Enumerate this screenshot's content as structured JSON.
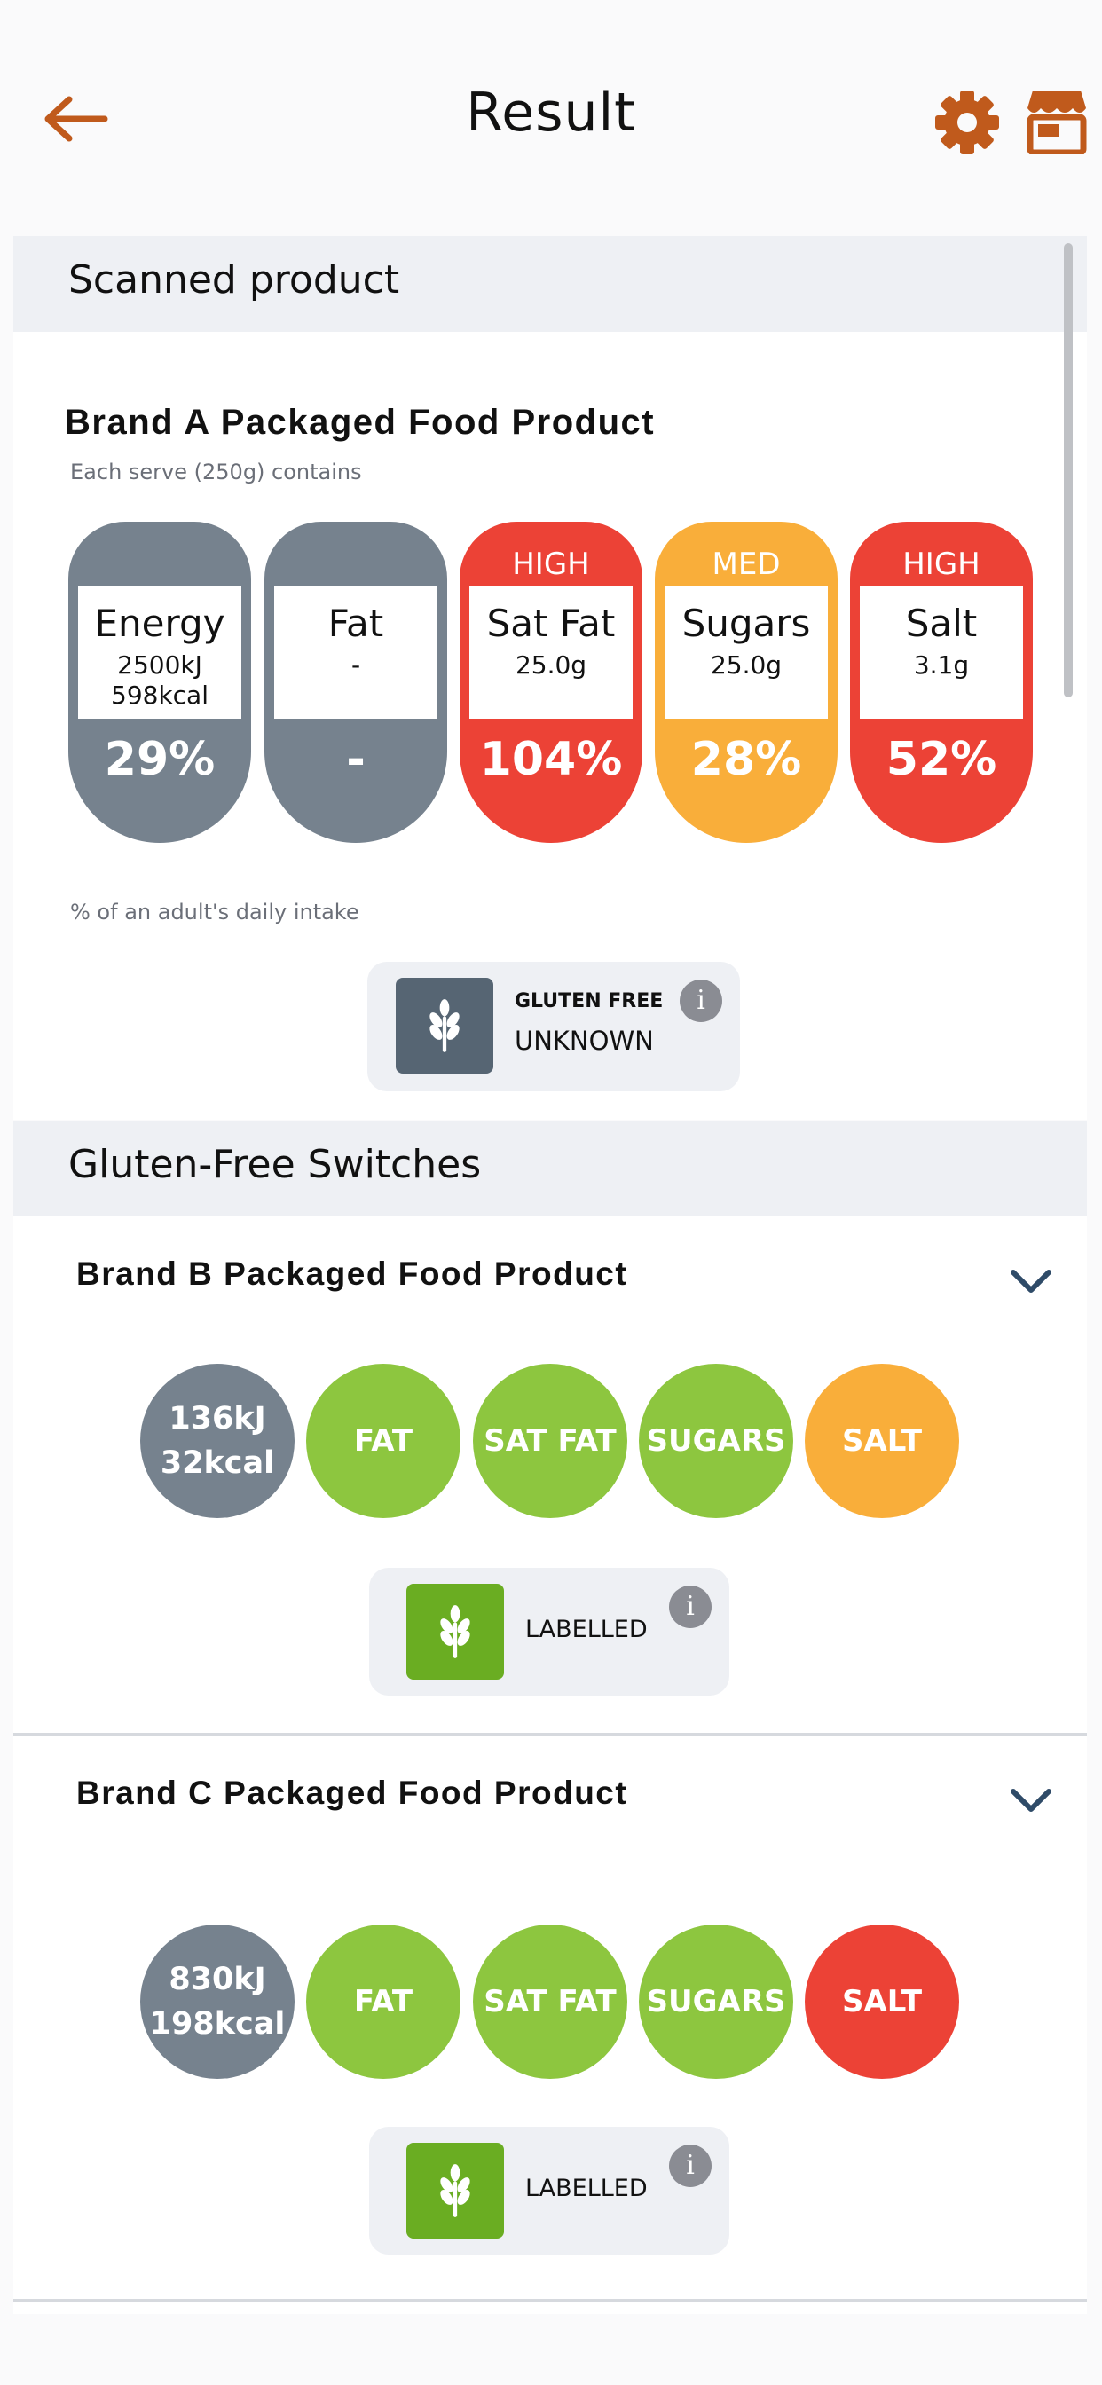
{
  "header": {
    "title": "Result",
    "back_icon": "arrow-left-icon",
    "settings_icon": "gear-icon",
    "store_icon": "store-icon",
    "accent": "#c05a1c"
  },
  "scanned": {
    "section_title": "Scanned product",
    "product_name": "Brand A Packaged Food Product",
    "serve_text": "Each serve (250g) contains",
    "nutrients": [
      {
        "level": "",
        "name": "Energy",
        "amount": "2500kJ\n598kcal",
        "percent": "29%",
        "color": "#76828e"
      },
      {
        "level": "",
        "name": "Fat",
        "amount": "-",
        "percent": "-",
        "color": "#76828e"
      },
      {
        "level": "HIGH",
        "name": "Sat Fat",
        "amount": "25.0g",
        "percent": "104%",
        "color": "#ec4236"
      },
      {
        "level": "MED",
        "name": "Sugars",
        "amount": "25.0g",
        "percent": "28%",
        "color": "#f9ae3a"
      },
      {
        "level": "HIGH",
        "name": "Salt",
        "amount": "3.1g",
        "percent": "52%",
        "color": "#ec4236"
      }
    ],
    "daily_intake_note": "% of an adult's daily intake",
    "gluten": {
      "label": "GLUTEN FREE",
      "status": "UNKNOWN",
      "icon": "wheat-icon",
      "info": "i",
      "color": "#566573"
    }
  },
  "switches": {
    "section_title": "Gluten-Free Switches",
    "items": [
      {
        "product_name": "Brand B Packaged Food Product",
        "energy": "136kJ\n32kcal",
        "circles": [
          {
            "label": "FAT",
            "color": "#8dc63f"
          },
          {
            "label": "SAT FAT",
            "color": "#8dc63f"
          },
          {
            "label": "SUGARS",
            "color": "#8dc63f"
          },
          {
            "label": "SALT",
            "color": "#f9ae3a"
          }
        ],
        "gluten": {
          "status": "LABELLED",
          "icon": "wheat-icon",
          "info": "i",
          "color": "#6aad22"
        }
      },
      {
        "product_name": "Brand C Packaged Food Product",
        "energy": "830kJ\n198kcal",
        "circles": [
          {
            "label": "FAT",
            "color": "#8dc63f"
          },
          {
            "label": "SAT FAT",
            "color": "#8dc63f"
          },
          {
            "label": "SUGARS",
            "color": "#8dc63f"
          },
          {
            "label": "SALT",
            "color": "#ec4236"
          }
        ],
        "gluten": {
          "status": "LABELLED",
          "icon": "wheat-icon",
          "info": "i",
          "color": "#6aad22"
        }
      }
    ]
  },
  "colors": {
    "energy_circle": "#76828e",
    "chevron": "#2f4b68"
  }
}
